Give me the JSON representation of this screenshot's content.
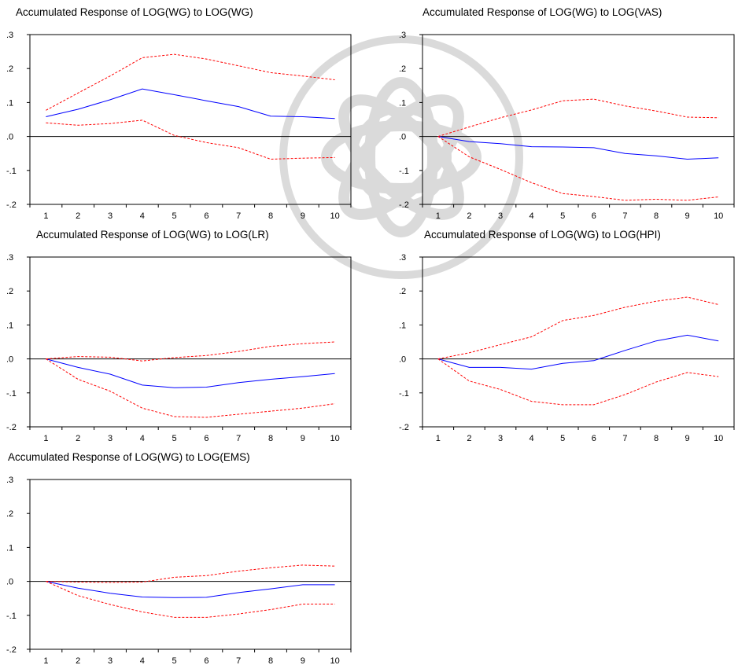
{
  "chart_data": [
    {
      "type": "line",
      "title": "Accumulated Response of LOG(WG) to LOG(WG)",
      "x": [
        1,
        2,
        3,
        4,
        5,
        6,
        7,
        8,
        9,
        10
      ],
      "ylim": [
        -0.2,
        0.3
      ],
      "y_ticks": [
        ".3",
        ".2",
        ".1",
        ".0",
        "-.1",
        "-.2"
      ],
      "y_tick_values": [
        0.3,
        0.2,
        0.1,
        0.0,
        -0.1,
        -0.2
      ],
      "grid": false,
      "series": [
        {
          "role": "response",
          "color": "#0000ff",
          "style": "solid",
          "values": [
            0.058,
            0.08,
            0.108,
            0.14,
            0.123,
            0.105,
            0.088,
            0.06,
            0.058,
            0.053
          ]
        },
        {
          "role": "upper band",
          "color": "#ff0000",
          "style": "dashed",
          "values": [
            0.077,
            0.128,
            0.178,
            0.232,
            0.242,
            0.228,
            0.208,
            0.188,
            0.178,
            0.167
          ]
        },
        {
          "role": "lower band",
          "color": "#ff0000",
          "style": "dashed",
          "values": [
            0.04,
            0.033,
            0.038,
            0.048,
            0.003,
            -0.018,
            -0.033,
            -0.067,
            -0.064,
            -0.062
          ]
        }
      ]
    },
    {
      "type": "line",
      "title": "Accumulated Response of LOG(WG) to LOG(VAS)",
      "x": [
        1,
        2,
        3,
        4,
        5,
        6,
        7,
        8,
        9,
        10
      ],
      "ylim": [
        -0.2,
        0.3
      ],
      "y_ticks": [
        ".3",
        ".2",
        ".1",
        ".0",
        "-.1",
        "-.2"
      ],
      "y_tick_values": [
        0.3,
        0.2,
        0.1,
        0.0,
        -0.1,
        -0.2
      ],
      "grid": false,
      "series": [
        {
          "role": "response",
          "color": "#0000ff",
          "style": "solid",
          "values": [
            0.0,
            -0.015,
            -0.021,
            -0.03,
            -0.031,
            -0.033,
            -0.05,
            -0.057,
            -0.067,
            -0.063
          ]
        },
        {
          "role": "upper band",
          "color": "#ff0000",
          "style": "dashed",
          "values": [
            0.0,
            0.028,
            0.055,
            0.078,
            0.105,
            0.11,
            0.09,
            0.075,
            0.057,
            0.055
          ]
        },
        {
          "role": "lower band",
          "color": "#ff0000",
          "style": "dashed",
          "values": [
            0.0,
            -0.06,
            -0.097,
            -0.136,
            -0.168,
            -0.177,
            -0.188,
            -0.185,
            -0.188,
            -0.178
          ]
        }
      ]
    },
    {
      "type": "line",
      "title": "Accumulated Response of LOG(WG) to LOG(LR)",
      "x": [
        1,
        2,
        3,
        4,
        5,
        6,
        7,
        8,
        9,
        10
      ],
      "ylim": [
        -0.2,
        0.3
      ],
      "y_ticks": [
        ".3",
        ".2",
        ".1",
        ".0",
        "-.1",
        "-.2"
      ],
      "y_tick_values": [
        0.3,
        0.2,
        0.1,
        0.0,
        -0.1,
        -0.2
      ],
      "grid": false,
      "series": [
        {
          "role": "response",
          "color": "#0000ff",
          "style": "solid",
          "values": [
            0.0,
            -0.025,
            -0.045,
            -0.077,
            -0.085,
            -0.083,
            -0.07,
            -0.06,
            -0.052,
            -0.043
          ]
        },
        {
          "role": "upper band",
          "color": "#ff0000",
          "style": "dashed",
          "values": [
            0.0,
            0.007,
            0.005,
            -0.006,
            0.004,
            0.01,
            0.022,
            0.037,
            0.045,
            0.05
          ]
        },
        {
          "role": "lower band",
          "color": "#ff0000",
          "style": "dashed",
          "values": [
            0.0,
            -0.06,
            -0.095,
            -0.145,
            -0.17,
            -0.172,
            -0.163,
            -0.154,
            -0.145,
            -0.132
          ]
        }
      ]
    },
    {
      "type": "line",
      "title": "Accumulated Response of LOG(WG) to LOG(HPI)",
      "x": [
        1,
        2,
        3,
        4,
        5,
        6,
        7,
        8,
        9,
        10
      ],
      "ylim": [
        -0.2,
        0.3
      ],
      "y_ticks": [
        ".3",
        ".2",
        ".1",
        ".0",
        "-.1",
        "-.2"
      ],
      "y_tick_values": [
        0.3,
        0.2,
        0.1,
        0.0,
        -0.1,
        -0.2
      ],
      "grid": false,
      "series": [
        {
          "role": "response",
          "color": "#0000ff",
          "style": "solid",
          "values": [
            0.0,
            -0.025,
            -0.025,
            -0.03,
            -0.013,
            -0.005,
            0.025,
            0.053,
            0.07,
            0.053
          ]
        },
        {
          "role": "upper band",
          "color": "#ff0000",
          "style": "dashed",
          "values": [
            0.0,
            0.018,
            0.042,
            0.065,
            0.113,
            0.128,
            0.152,
            0.17,
            0.182,
            0.16
          ]
        },
        {
          "role": "lower band",
          "color": "#ff0000",
          "style": "dashed",
          "values": [
            0.0,
            -0.065,
            -0.09,
            -0.125,
            -0.135,
            -0.135,
            -0.105,
            -0.068,
            -0.04,
            -0.052
          ]
        }
      ]
    },
    {
      "type": "line",
      "title": "Accumulated Response of LOG(WG) to LOG(EMS)",
      "x": [
        1,
        2,
        3,
        4,
        5,
        6,
        7,
        8,
        9,
        10
      ],
      "ylim": [
        -0.2,
        0.3
      ],
      "y_ticks": [
        ".3",
        ".2",
        ".1",
        ".0",
        "-.1",
        "-.2"
      ],
      "y_tick_values": [
        0.3,
        0.2,
        0.1,
        0.0,
        -0.1,
        -0.2
      ],
      "grid": false,
      "series": [
        {
          "role": "response",
          "color": "#0000ff",
          "style": "solid",
          "values": [
            0.0,
            -0.02,
            -0.035,
            -0.046,
            -0.048,
            -0.047,
            -0.033,
            -0.022,
            -0.01,
            -0.01
          ]
        },
        {
          "role": "upper band",
          "color": "#ff0000",
          "style": "dashed",
          "values": [
            0.0,
            -0.002,
            -0.003,
            -0.002,
            0.012,
            0.017,
            0.03,
            0.04,
            0.048,
            0.045
          ]
        },
        {
          "role": "lower band",
          "color": "#ff0000",
          "style": "dashed",
          "values": [
            0.0,
            -0.042,
            -0.068,
            -0.09,
            -0.106,
            -0.106,
            -0.096,
            -0.083,
            -0.067,
            -0.067
          ]
        }
      ]
    }
  ]
}
